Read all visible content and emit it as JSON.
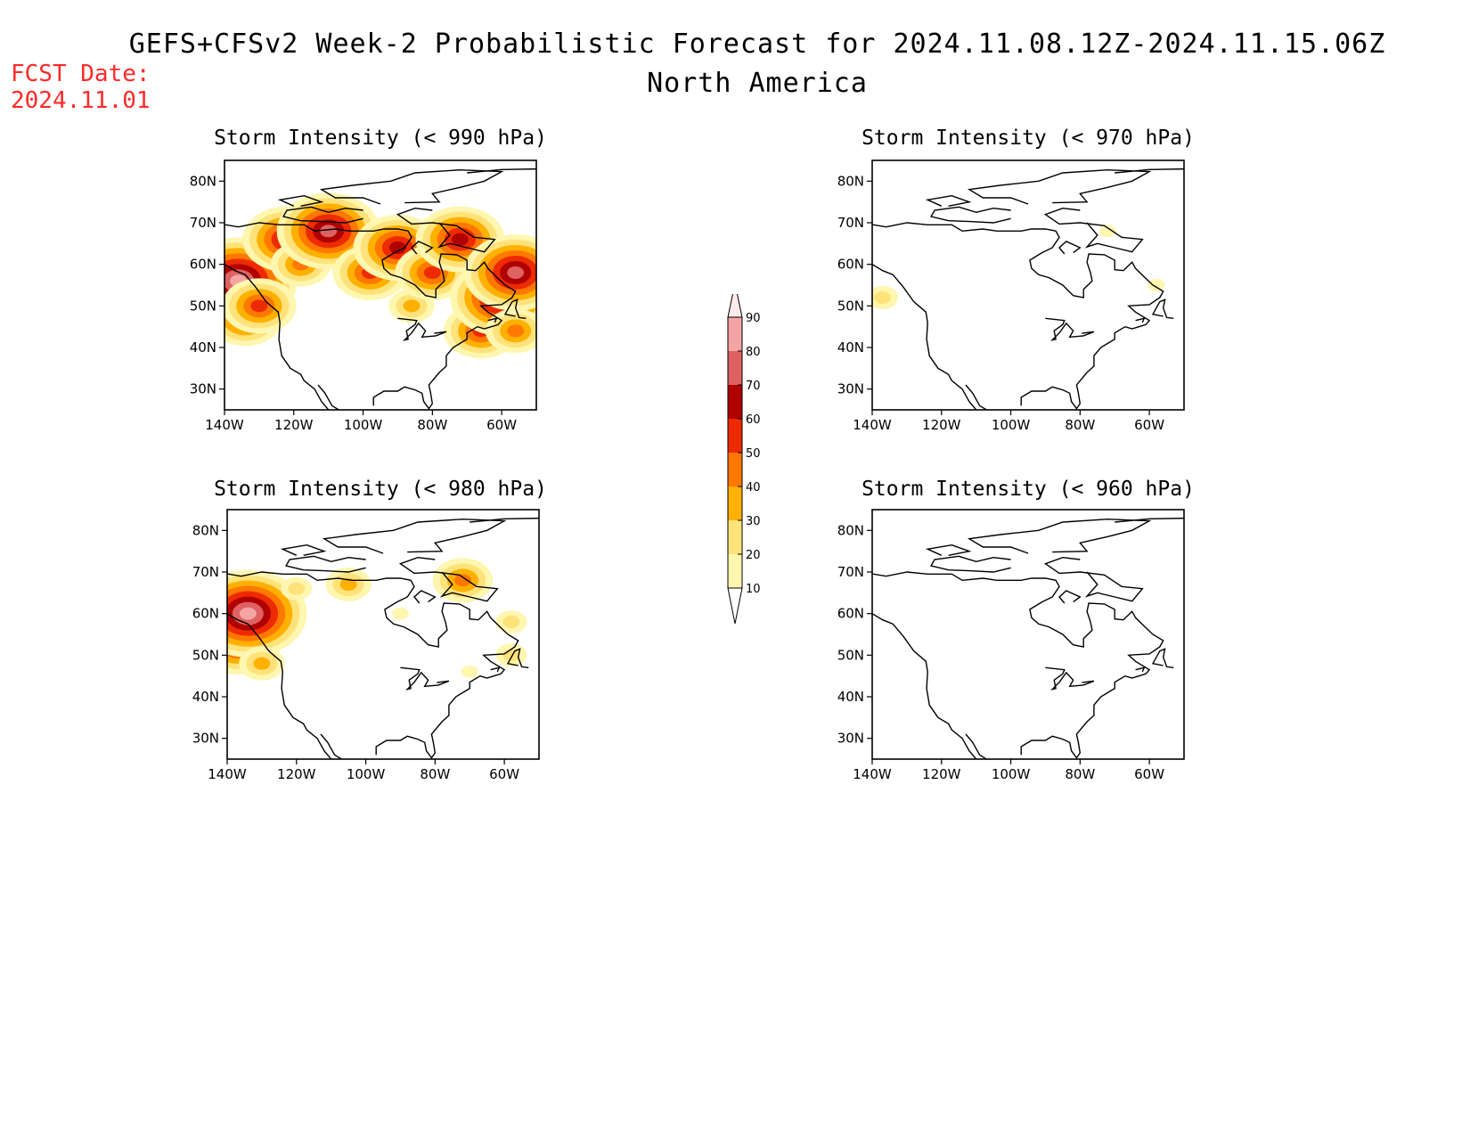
{
  "header": {
    "title": "GEFS+CFSv2 Week-2 Probabilistic Forecast for 2024.11.08.12Z-2024.11.15.06Z",
    "subtitle": "North America",
    "fcst_label": "FCST Date:",
    "fcst_date": "2024.11.01"
  },
  "axes": {
    "lat_ticks": [
      "80N",
      "70N",
      "60N",
      "50N",
      "40N",
      "30N"
    ],
    "lon_ticks": [
      "140W",
      "120W",
      "100W",
      "80W",
      "60W"
    ],
    "lat_values": [
      80,
      70,
      60,
      50,
      40,
      30
    ],
    "lon_values": [
      -140,
      -120,
      -100,
      -80,
      -60
    ],
    "lon_range": [
      -140,
      -50
    ],
    "lat_range": [
      25,
      85
    ]
  },
  "colorbar": {
    "levels": [
      "10",
      "20",
      "30",
      "40",
      "50",
      "60",
      "70",
      "80",
      "90"
    ],
    "colors": [
      "#fff6b0",
      "#ffe27a",
      "#ffb000",
      "#ff7800",
      "#ee2a00",
      "#b00000",
      "#de6262",
      "#f4a4a4",
      "#ffe8ea"
    ]
  },
  "panels": [
    {
      "id": "p990",
      "title": "Storm Intensity (< 990 hPa)",
      "regions": [
        {
          "lon": -138,
          "lat": 52,
          "level": 7
        },
        {
          "lon": -136,
          "lat": 56,
          "level": 8
        },
        {
          "lon": -134,
          "lat": 47,
          "level": 5
        },
        {
          "lon": -130,
          "lat": 50,
          "level": 5
        },
        {
          "lon": -122,
          "lat": 66,
          "level": 6
        },
        {
          "lon": -118,
          "lat": 60,
          "level": 4
        },
        {
          "lon": -110,
          "lat": 68,
          "level": 7
        },
        {
          "lon": -98,
          "lat": 58,
          "level": 5
        },
        {
          "lon": -90,
          "lat": 64,
          "level": 6
        },
        {
          "lon": -86,
          "lat": 50,
          "level": 3
        },
        {
          "lon": -80,
          "lat": 58,
          "level": 5
        },
        {
          "lon": -72,
          "lat": 66,
          "level": 6
        },
        {
          "lon": -66,
          "lat": 44,
          "level": 5
        },
        {
          "lon": -60,
          "lat": 52,
          "level": 7
        },
        {
          "lon": -56,
          "lat": 58,
          "level": 7
        },
        {
          "lon": -56,
          "lat": 44,
          "level": 4
        }
      ]
    },
    {
      "id": "p970",
      "title": "Storm Intensity (< 970 hPa)",
      "regions": [
        {
          "lon": -137,
          "lat": 52,
          "level": 2
        },
        {
          "lon": -72,
          "lat": 68,
          "level": 1
        },
        {
          "lon": -58,
          "lat": 55,
          "level": 1
        }
      ]
    },
    {
      "id": "p980",
      "title": "Storm Intensity (< 980 hPa)",
      "regions": [
        {
          "lon": -137,
          "lat": 52,
          "level": 5
        },
        {
          "lon": -134,
          "lat": 60,
          "level": 8
        },
        {
          "lon": -130,
          "lat": 48,
          "level": 3
        },
        {
          "lon": -120,
          "lat": 66,
          "level": 2
        },
        {
          "lon": -105,
          "lat": 67,
          "level": 3
        },
        {
          "lon": -90,
          "lat": 60,
          "level": 1
        },
        {
          "lon": -72,
          "lat": 68,
          "level": 4
        },
        {
          "lon": -58,
          "lat": 58,
          "level": 2
        },
        {
          "lon": -58,
          "lat": 50,
          "level": 2
        },
        {
          "lon": -70,
          "lat": 46,
          "level": 1
        }
      ]
    },
    {
      "id": "p960",
      "title": "Storm Intensity (< 960 hPa)",
      "regions": []
    }
  ]
}
